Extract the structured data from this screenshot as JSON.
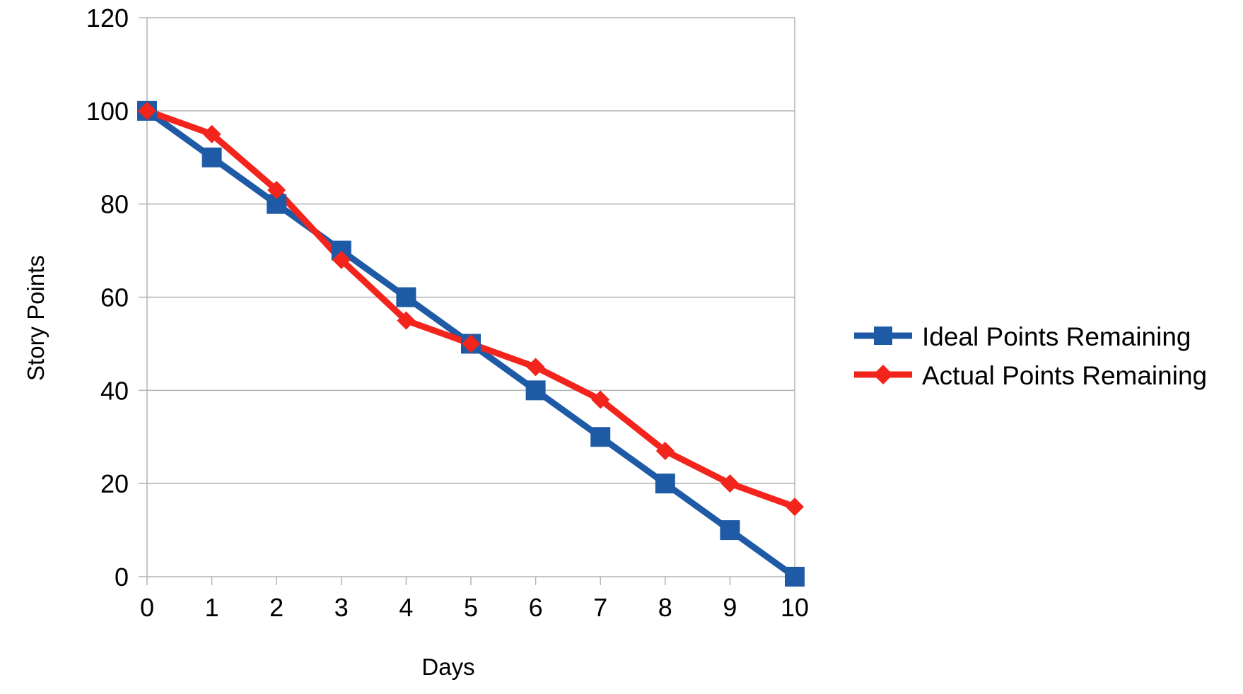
{
  "chart_data": {
    "type": "line",
    "title": "",
    "xlabel": "Days",
    "ylabel": "Story Points",
    "x": [
      0,
      1,
      2,
      3,
      4,
      5,
      6,
      7,
      8,
      9,
      10
    ],
    "xlim": [
      0,
      10
    ],
    "ylim": [
      0,
      120
    ],
    "y_ticks": [
      0,
      20,
      40,
      60,
      80,
      100,
      120
    ],
    "grid": "horizontal",
    "legend_position": "right",
    "series": [
      {
        "name": "Ideal Points Remaining",
        "color": "#1f5aa6",
        "marker": "square",
        "values": [
          100,
          90,
          80,
          70,
          60,
          50,
          40,
          30,
          20,
          10,
          0
        ]
      },
      {
        "name": "Actual Points Remaining",
        "color": "#f2241c",
        "marker": "diamond",
        "values": [
          100,
          95,
          83,
          68,
          55,
          50,
          45,
          38,
          27,
          20,
          15
        ]
      }
    ]
  }
}
